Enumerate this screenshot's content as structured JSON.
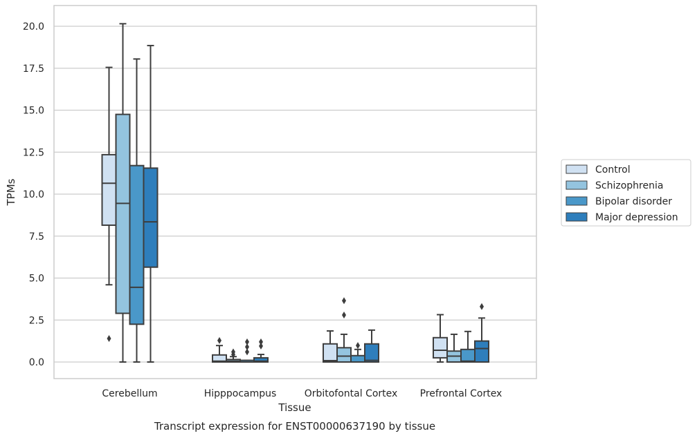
{
  "chart_data": {
    "type": "box",
    "title": "",
    "caption": "Transcript expression for ENST00000637190 by tissue",
    "xlabel": "Tissue",
    "ylabel": "TPMs",
    "ylim": [
      -1.0,
      21.2
    ],
    "yticks": [
      0.0,
      2.5,
      5.0,
      7.5,
      10.0,
      12.5,
      15.0,
      17.5,
      20.0
    ],
    "ytick_labels": [
      "0.0",
      "2.5",
      "5.0",
      "7.5",
      "10.0",
      "12.5",
      "15.0",
      "17.5",
      "20.0"
    ],
    "grid": "horizontal",
    "legend_position": "right",
    "categories": [
      "Cerebellum",
      "Hipppocampus",
      "Orbitofontal Cortex",
      "Prefrontal Cortex"
    ],
    "series": [
      {
        "name": "Control",
        "color": "#d0e1f2",
        "boxes": [
          {
            "whislo": 4.6,
            "q1": 8.15,
            "med": 10.65,
            "q3": 12.35,
            "whishi": 17.55,
            "fliers": [
              1.4
            ]
          },
          {
            "whislo": 0.0,
            "q1": 0.0,
            "med": 0.05,
            "q3": 0.42,
            "whishi": 0.98,
            "fliers": [
              1.28
            ]
          },
          {
            "whislo": 0.0,
            "q1": 0.0,
            "med": 0.08,
            "q3": 1.08,
            "whishi": 1.85,
            "fliers": []
          },
          {
            "whislo": 0.0,
            "q1": 0.25,
            "med": 0.7,
            "q3": 1.45,
            "whishi": 2.82,
            "fliers": []
          }
        ]
      },
      {
        "name": "Schizophrenia",
        "color": "#94c4df",
        "boxes": [
          {
            "whislo": 0.0,
            "q1": 2.9,
            "med": 9.45,
            "q3": 14.75,
            "whishi": 20.15,
            "fliers": []
          },
          {
            "whislo": 0.0,
            "q1": 0.0,
            "med": 0.05,
            "q3": 0.15,
            "whishi": 0.32,
            "fliers": [
              0.45,
              0.6
            ]
          },
          {
            "whislo": 0.0,
            "q1": 0.0,
            "med": 0.35,
            "q3": 0.85,
            "whishi": 1.65,
            "fliers": [
              2.8,
              3.65
            ]
          },
          {
            "whislo": 0.0,
            "q1": 0.0,
            "med": 0.35,
            "q3": 0.65,
            "whishi": 1.65,
            "fliers": []
          }
        ]
      },
      {
        "name": "Bipolar disorder",
        "color": "#4a98c9",
        "boxes": [
          {
            "whislo": 0.0,
            "q1": 2.25,
            "med": 4.45,
            "q3": 11.7,
            "whishi": 18.05,
            "fliers": []
          },
          {
            "whislo": 0.0,
            "q1": 0.0,
            "med": 0.0,
            "q3": 0.1,
            "whishi": 0.1,
            "fliers": [
              0.6,
              0.9,
              1.2
            ]
          },
          {
            "whislo": 0.0,
            "q1": 0.0,
            "med": 0.0,
            "q3": 0.38,
            "whishi": 0.75,
            "fliers": [
              0.98
            ]
          },
          {
            "whislo": 0.0,
            "q1": 0.0,
            "med": 0.05,
            "q3": 0.75,
            "whishi": 1.82,
            "fliers": []
          }
        ]
      },
      {
        "name": "Major depression",
        "color": "#2e7ebc",
        "boxes": [
          {
            "whislo": 0.0,
            "q1": 5.65,
            "med": 8.35,
            "q3": 11.55,
            "whishi": 18.85,
            "fliers": []
          },
          {
            "whislo": 0.0,
            "q1": 0.0,
            "med": 0.05,
            "q3": 0.25,
            "whishi": 0.45,
            "fliers": [
              0.95,
              1.2
            ]
          },
          {
            "whislo": 0.0,
            "q1": 0.0,
            "med": 0.1,
            "q3": 1.08,
            "whishi": 1.9,
            "fliers": []
          },
          {
            "whislo": 0.0,
            "q1": 0.0,
            "med": 0.8,
            "q3": 1.25,
            "whishi": 2.62,
            "fliers": [
              3.3
            ]
          }
        ]
      }
    ]
  }
}
